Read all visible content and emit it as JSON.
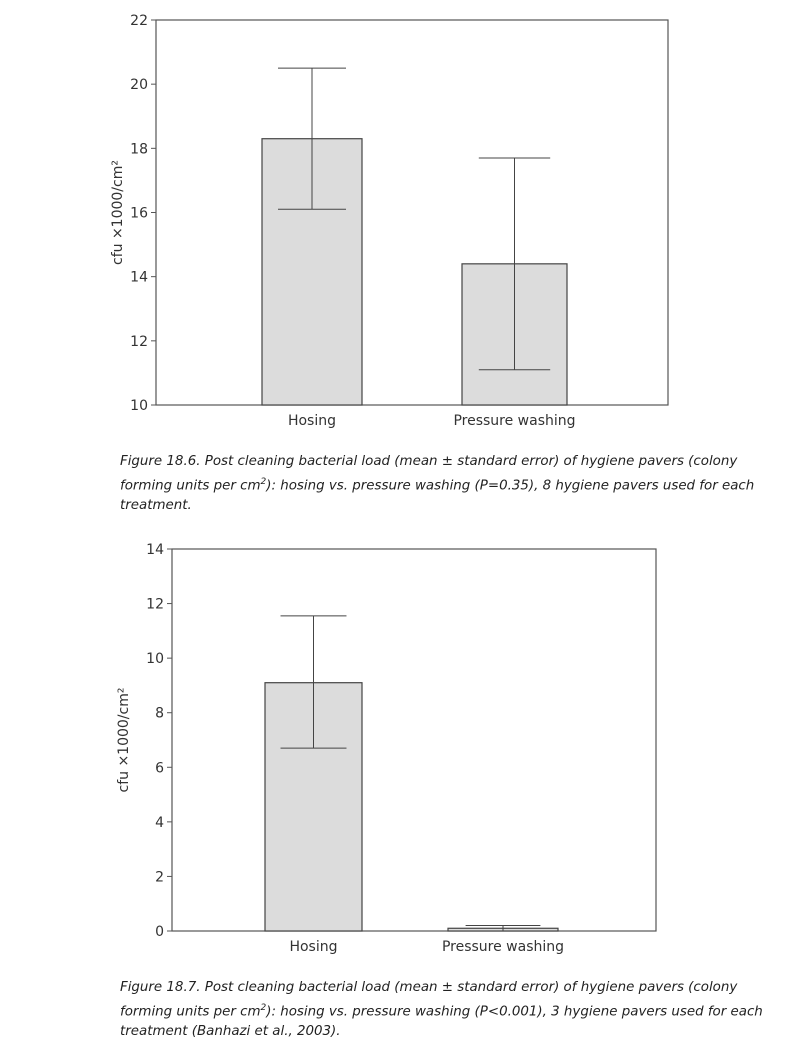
{
  "chart_data": [
    {
      "type": "bar",
      "categories": [
        "Hosing",
        "Pressure washing"
      ],
      "values": [
        18.3,
        14.4
      ],
      "error_upper": [
        20.5,
        17.7
      ],
      "error_lower": [
        16.1,
        11.1
      ],
      "ylabel": "cfu ×1000/cm²",
      "ylim": [
        10,
        22
      ],
      "yticks": [
        10,
        12,
        14,
        16,
        18,
        20,
        22
      ],
      "bar_color": "#dcdcdc",
      "caption": {
        "label": "Figure 18.6.",
        "text_a": " Post cleaning bacterial load (mean ± standard error) of hygiene pavers (colony forming units per cm",
        "sup": "2",
        "text_b": "): hosing vs. pressure washing (P=0.35), 8 hygiene pavers used for each treatment."
      }
    },
    {
      "type": "bar",
      "categories": [
        "Hosing",
        "Pressure washing"
      ],
      "values": [
        9.1,
        0.1
      ],
      "error_upper": [
        11.55,
        0.2
      ],
      "error_lower": [
        6.7,
        0.0
      ],
      "ylabel": "cfu ×1000/cm²",
      "ylim": [
        0,
        14
      ],
      "yticks": [
        0,
        2,
        4,
        6,
        8,
        10,
        12,
        14
      ],
      "bar_color": "#dcdcdc",
      "caption": {
        "label": "Figure 18.7.",
        "text_a": " Post cleaning bacterial load (mean ± standard error) of hygiene pavers (colony forming units per cm",
        "sup": "2",
        "text_b": "): hosing vs. pressure washing (P<0.001), 3 hygiene pavers used for each treatment (Banhazi et al., 2003)."
      }
    }
  ]
}
